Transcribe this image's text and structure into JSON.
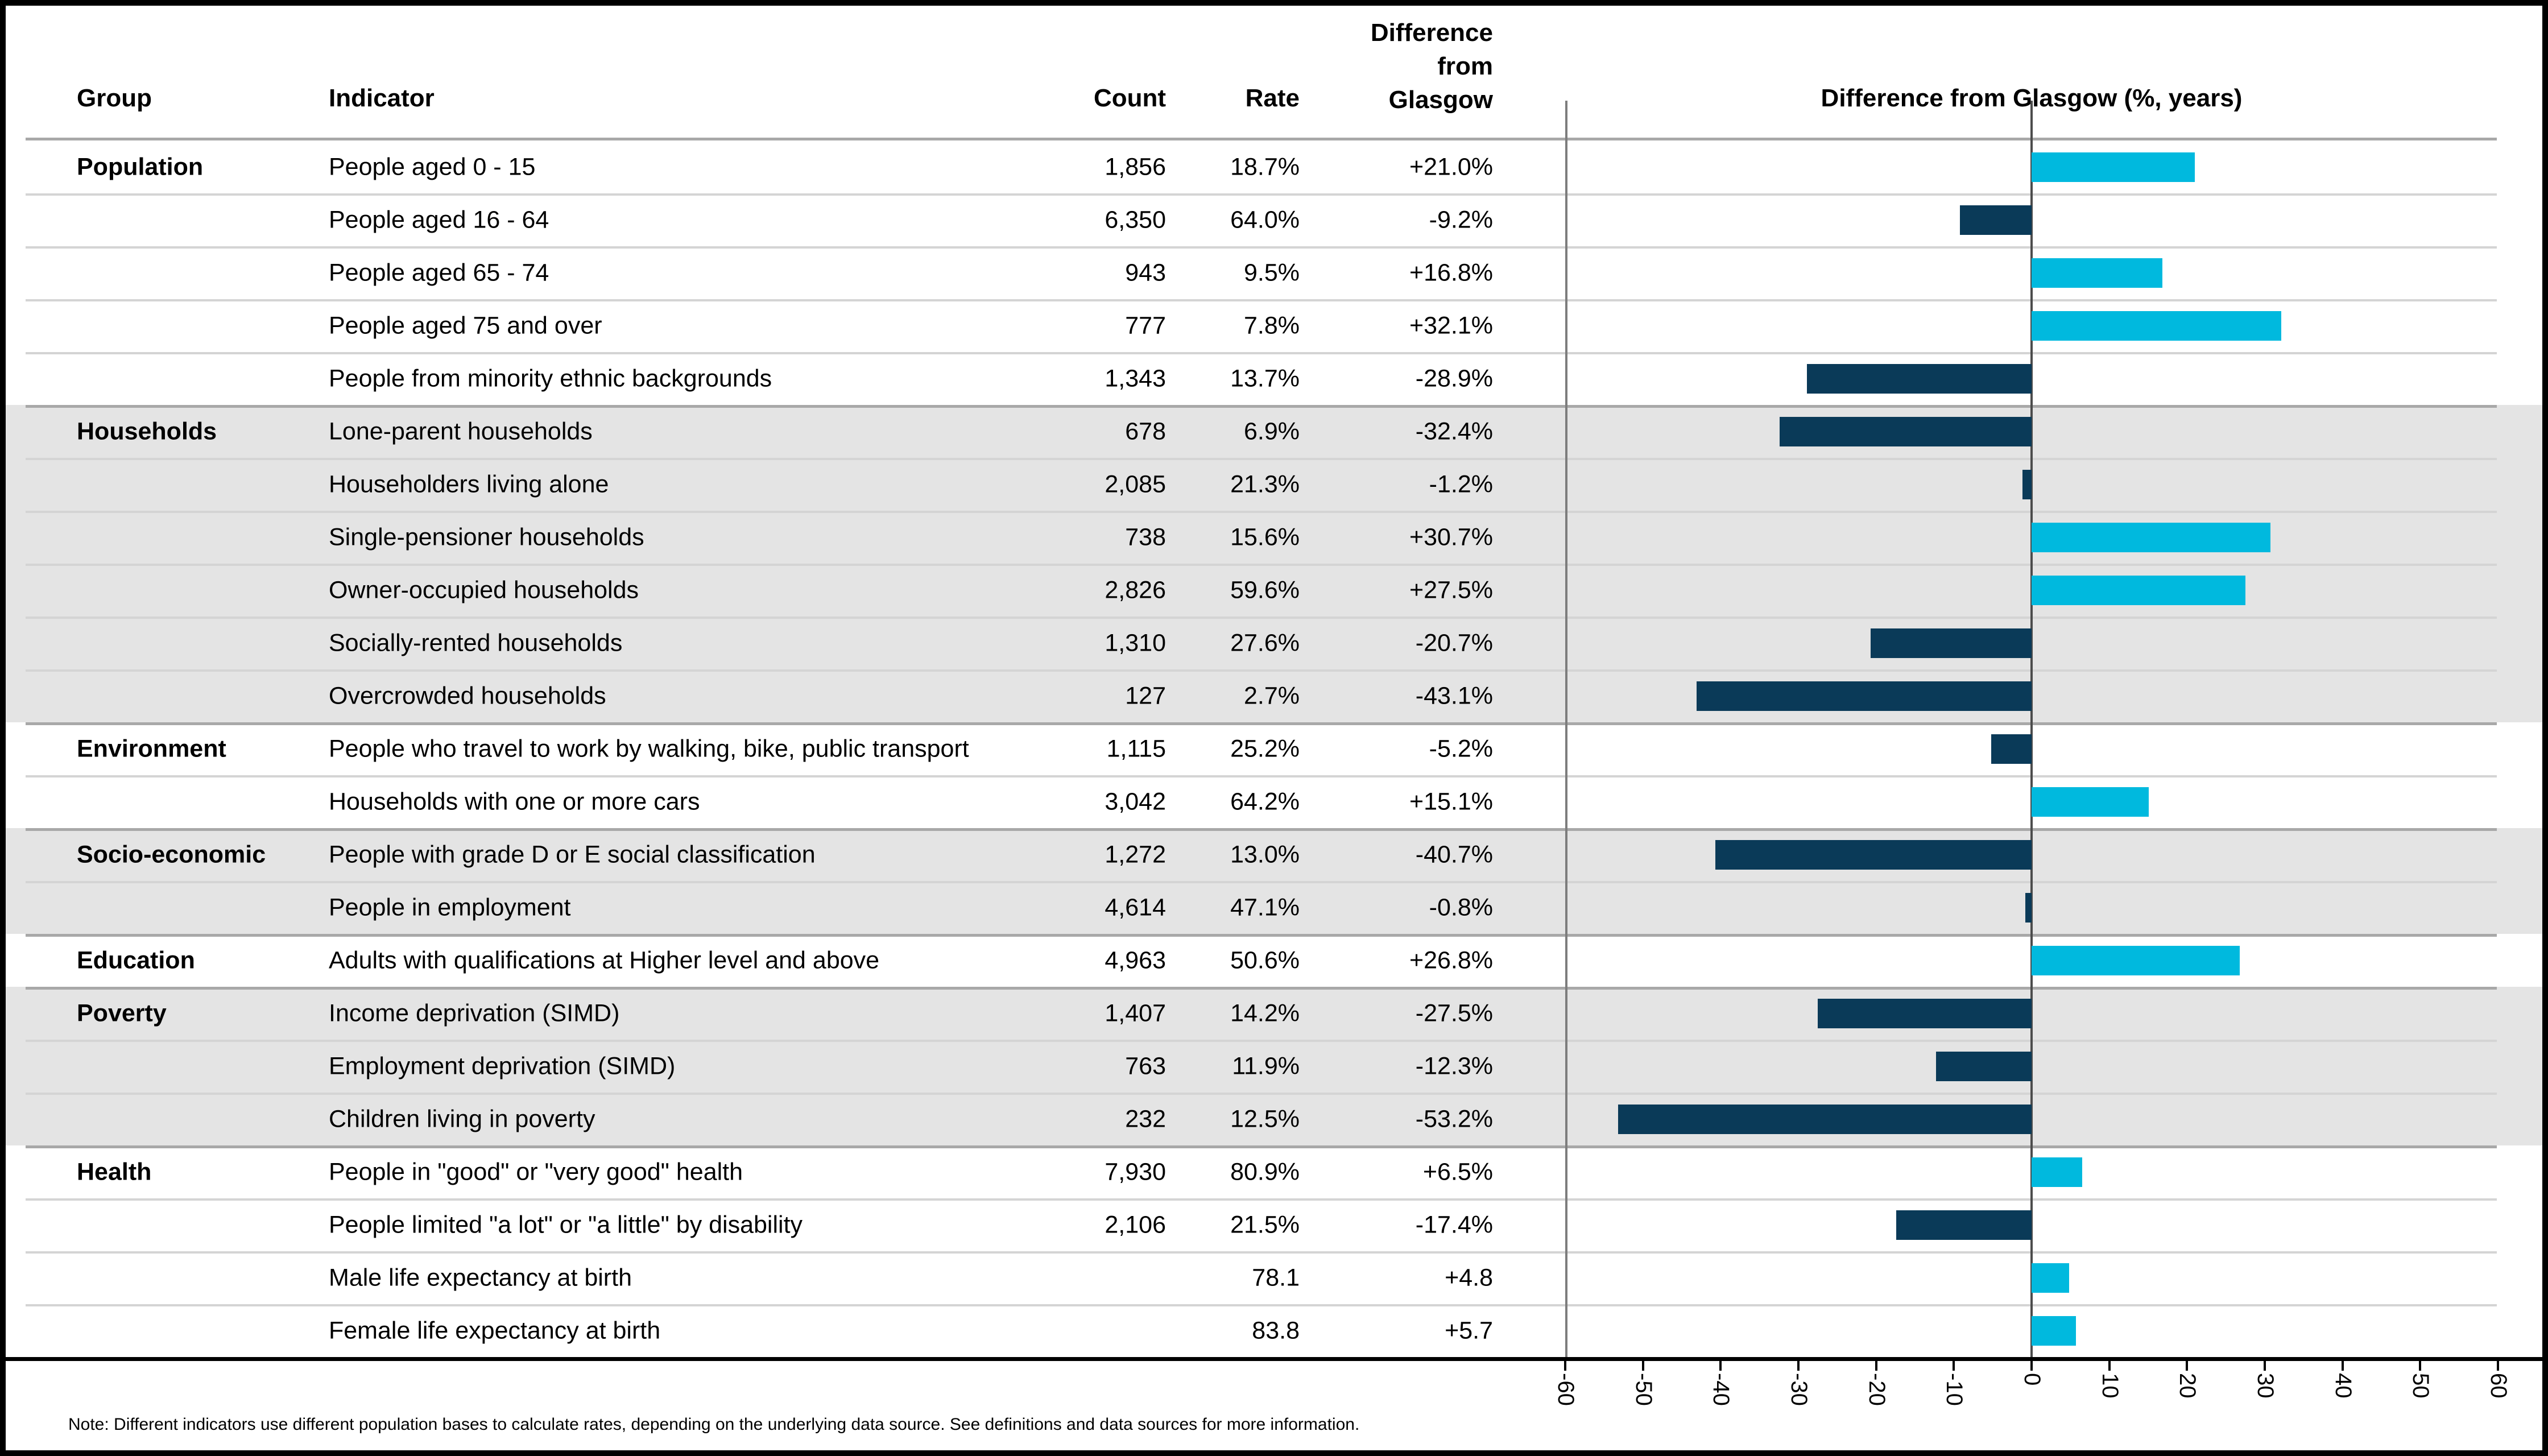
{
  "header": {
    "group": "Group",
    "indicator": "Indicator",
    "count": "Count",
    "rate": "Rate",
    "diff_line1": "Difference",
    "diff_line2": "from",
    "diff_line3": "Glasgow",
    "chart_title": "Difference from Glasgow (%, years)"
  },
  "note": "Note: Different indicators use different population bases to calculate rates, depending on the underlying data source. See definitions and data sources for more information.",
  "colors": {
    "positive_bar": "#00b9de",
    "negative_bar": "#0a3a58",
    "shaded_row_background": "#e4e4e4",
    "row_separator": "#d4d4d4",
    "group_separator": "#a8a8a8",
    "zero_line": "#4c4c4c",
    "chart_border": "#7d7d7d"
  },
  "shaded_groups": [
    "Households",
    "Socio-economic",
    "Poverty"
  ],
  "axis": {
    "min": -60,
    "max": 60,
    "step": 10,
    "labels": [
      "-60",
      "-50",
      "-40",
      "-30",
      "-20",
      "-10",
      "0",
      "10",
      "20",
      "30",
      "40",
      "50",
      "60"
    ]
  },
  "rows": [
    {
      "group": "Population",
      "indicator": "People aged 0 - 15",
      "count": "1,856",
      "rate": "18.7%",
      "diff": "+21.0%",
      "diff_value": 21.0
    },
    {
      "group": "",
      "indicator": "People aged 16 - 64",
      "count": "6,350",
      "rate": "64.0%",
      "diff": "-9.2%",
      "diff_value": -9.2
    },
    {
      "group": "",
      "indicator": "People aged 65 - 74",
      "count": "943",
      "rate": "9.5%",
      "diff": "+16.8%",
      "diff_value": 16.8
    },
    {
      "group": "",
      "indicator": "People aged 75 and over",
      "count": "777",
      "rate": "7.8%",
      "diff": "+32.1%",
      "diff_value": 32.1
    },
    {
      "group": "",
      "indicator": "People from minority ethnic backgrounds",
      "count": "1,343",
      "rate": "13.7%",
      "diff": "-28.9%",
      "diff_value": -28.9
    },
    {
      "group": "Households",
      "indicator": "Lone-parent households",
      "count": "678",
      "rate": "6.9%",
      "diff": "-32.4%",
      "diff_value": -32.4
    },
    {
      "group": "",
      "indicator": "Householders living alone",
      "count": "2,085",
      "rate": "21.3%",
      "diff": "-1.2%",
      "diff_value": -1.2
    },
    {
      "group": "",
      "indicator": "Single-pensioner households",
      "count": "738",
      "rate": "15.6%",
      "diff": "+30.7%",
      "diff_value": 30.7
    },
    {
      "group": "",
      "indicator": "Owner-occupied households",
      "count": "2,826",
      "rate": "59.6%",
      "diff": "+27.5%",
      "diff_value": 27.5
    },
    {
      "group": "",
      "indicator": "Socially-rented households",
      "count": "1,310",
      "rate": "27.6%",
      "diff": "-20.7%",
      "diff_value": -20.7
    },
    {
      "group": "",
      "indicator": "Overcrowded households",
      "count": "127",
      "rate": "2.7%",
      "diff": "-43.1%",
      "diff_value": -43.1
    },
    {
      "group": "Environment",
      "indicator": "People who travel to work by walking, bike, public transport",
      "count": "1,115",
      "rate": "25.2%",
      "diff": "-5.2%",
      "diff_value": -5.2
    },
    {
      "group": "",
      "indicator": "Households with one or more cars",
      "count": "3,042",
      "rate": "64.2%",
      "diff": "+15.1%",
      "diff_value": 15.1
    },
    {
      "group": "Socio-economic",
      "indicator": "People with grade D or E social classification",
      "count": "1,272",
      "rate": "13.0%",
      "diff": "-40.7%",
      "diff_value": -40.7
    },
    {
      "group": "",
      "indicator": "People in employment",
      "count": "4,614",
      "rate": "47.1%",
      "diff": "-0.8%",
      "diff_value": -0.8
    },
    {
      "group": "Education",
      "indicator": "Adults with qualifications at Higher level and above",
      "count": "4,963",
      "rate": "50.6%",
      "diff": "+26.8%",
      "diff_value": 26.8
    },
    {
      "group": "Poverty",
      "indicator": "Income deprivation (SIMD)",
      "count": "1,407",
      "rate": "14.2%",
      "diff": "-27.5%",
      "diff_value": -27.5
    },
    {
      "group": "",
      "indicator": "Employment deprivation (SIMD)",
      "count": "763",
      "rate": "11.9%",
      "diff": "-12.3%",
      "diff_value": -12.3
    },
    {
      "group": "",
      "indicator": "Children living in poverty",
      "count": "232",
      "rate": "12.5%",
      "diff": "-53.2%",
      "diff_value": -53.2
    },
    {
      "group": "Health",
      "indicator": "People in \"good\" or \"very good\" health",
      "count": "7,930",
      "rate": "80.9%",
      "diff": "+6.5%",
      "diff_value": 6.5
    },
    {
      "group": "",
      "indicator": "People limited \"a lot\" or \"a little\" by disability",
      "count": "2,106",
      "rate": "21.5%",
      "diff": "-17.4%",
      "diff_value": -17.4
    },
    {
      "group": "",
      "indicator": "Male life expectancy at birth",
      "count": "",
      "rate": "78.1",
      "diff": "+4.8",
      "diff_value": 4.8
    },
    {
      "group": "",
      "indicator": "Female life expectancy at birth",
      "count": "",
      "rate": "83.8",
      "diff": "+5.7",
      "diff_value": 5.7
    }
  ],
  "chart_data": {
    "type": "bar",
    "orientation": "horizontal",
    "title": "Difference from Glasgow (%, years)",
    "categories": [
      "People aged 0 - 15",
      "People aged 16 - 64",
      "People aged 65 - 74",
      "People aged 75 and over",
      "People from minority ethnic backgrounds",
      "Lone-parent households",
      "Householders living alone",
      "Single-pensioner households",
      "Owner-occupied households",
      "Socially-rented households",
      "Overcrowded households",
      "People who travel to work by walking, bike, public transport",
      "Households with one or more cars",
      "People with grade D or E social classification",
      "People in employment",
      "Adults with qualifications at Higher level and above",
      "Income deprivation (SIMD)",
      "Employment deprivation (SIMD)",
      "Children living in poverty",
      "People in \"good\" or \"very good\" health",
      "People limited \"a lot\" or \"a little\" by disability",
      "Male life expectancy at birth",
      "Female life expectancy at birth"
    ],
    "values": [
      21.0,
      -9.2,
      16.8,
      32.1,
      -28.9,
      -32.4,
      -1.2,
      30.7,
      27.5,
      -20.7,
      -43.1,
      -5.2,
      15.1,
      -40.7,
      -0.8,
      26.8,
      -27.5,
      -12.3,
      -53.2,
      6.5,
      -17.4,
      4.8,
      5.7
    ],
    "xlim": [
      -60,
      60
    ],
    "xticks": [
      -60,
      -50,
      -40,
      -30,
      -20,
      -10,
      0,
      10,
      20,
      30,
      40,
      50,
      60
    ],
    "grid": false,
    "legend": false,
    "positive_color": "#00b9de",
    "negative_color": "#0a3a58"
  }
}
